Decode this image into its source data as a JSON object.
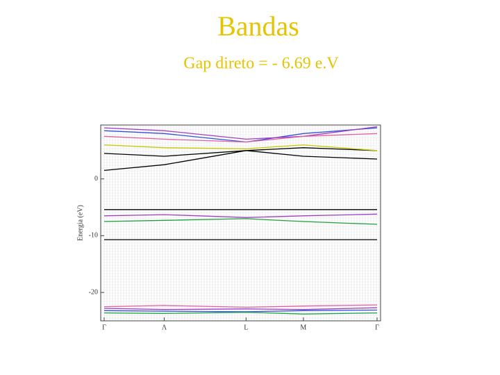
{
  "chart_data": {
    "type": "line",
    "title": "Bandas",
    "subtitle": "Gap direto = - 6.69 e.V",
    "y_label": "Energia (eV)",
    "x": [
      0,
      0.22,
      0.52,
      0.73,
      1.0
    ],
    "xlim": [
      0,
      1
    ],
    "xticks": [
      {
        "value": 0,
        "label": "Γ"
      },
      {
        "value": 0.22,
        "label": "Λ"
      },
      {
        "value": 0.52,
        "label": "L"
      },
      {
        "value": 0.73,
        "label": "M"
      },
      {
        "value": 1.0,
        "label": "Γ"
      }
    ],
    "ylim": [
      -25,
      9.5
    ],
    "yticks": [
      -20,
      -10,
      0
    ],
    "series": [
      {
        "color": "#000000",
        "values": [
          1.5,
          2.5,
          5,
          4,
          3.5
        ]
      },
      {
        "color": "#000000",
        "values": [
          4.5,
          4,
          5,
          5.5,
          5
        ]
      },
      {
        "color": "#c8c800",
        "values": [
          6,
          5.5,
          5.3,
          6,
          5
        ]
      },
      {
        "color": "#3050e0",
        "values": [
          8.5,
          8,
          6.5,
          8,
          9
        ]
      },
      {
        "color": "#a040c0",
        "values": [
          9,
          8.5,
          7,
          7.5,
          9.2
        ]
      },
      {
        "color": "#e060a0",
        "values": [
          7.5,
          7,
          6.5,
          7.5,
          8
        ]
      },
      {
        "color": "#000000",
        "values": [
          -5.4,
          -5.4,
          -5.4,
          -5.4,
          -5.4
        ]
      },
      {
        "color": "#a040c0",
        "values": [
          -6.5,
          -6.3,
          -6.8,
          -6.5,
          -6.2
        ]
      },
      {
        "color": "#20a040",
        "values": [
          -7.5,
          -7.3,
          -7,
          -7.5,
          -8
        ]
      },
      {
        "color": "#000000",
        "values": [
          -10.7,
          -10.7,
          -10.7,
          -10.7,
          -10.7
        ]
      },
      {
        "color": "#e060a0",
        "values": [
          -22.5,
          -22.3,
          -22.6,
          -22.4,
          -22.2
        ]
      },
      {
        "color": "#a040c0",
        "values": [
          -22.8,
          -23,
          -22.9,
          -23,
          -22.7
        ]
      },
      {
        "color": "#3050e0",
        "values": [
          -23.2,
          -23.3,
          -23.4,
          -23.2,
          -23.1
        ]
      },
      {
        "color": "#20a040",
        "values": [
          -23.6,
          -23.7,
          -23.5,
          -23.8,
          -23.6
        ]
      }
    ]
  }
}
